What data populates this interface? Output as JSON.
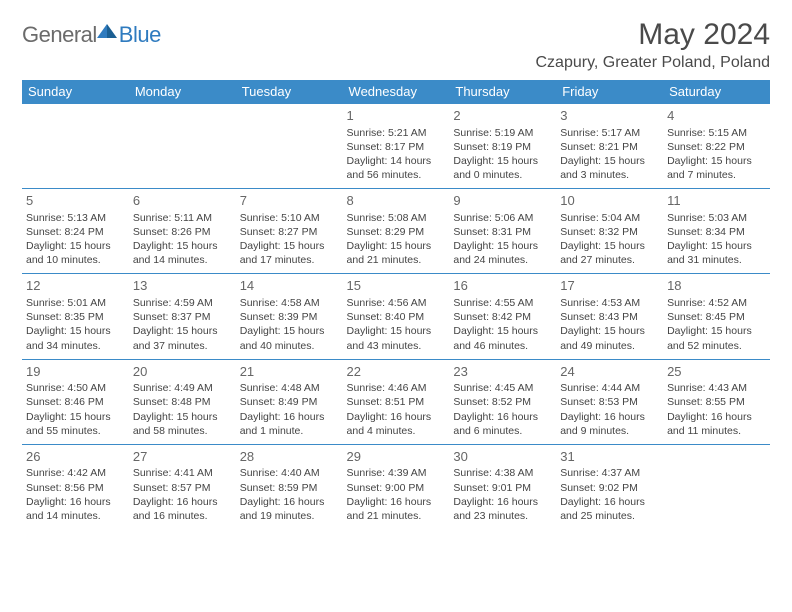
{
  "logo": {
    "general": "General",
    "blue": "Blue"
  },
  "title": "May 2024",
  "location": "Czapury, Greater Poland, Poland",
  "header_bg": "#3b8bc8",
  "days": [
    "Sunday",
    "Monday",
    "Tuesday",
    "Wednesday",
    "Thursday",
    "Friday",
    "Saturday"
  ],
  "weeks": [
    [
      null,
      null,
      null,
      {
        "n": "1",
        "sr": "5:21 AM",
        "ss": "8:17 PM",
        "dl": "14 hours and 56 minutes."
      },
      {
        "n": "2",
        "sr": "5:19 AM",
        "ss": "8:19 PM",
        "dl": "15 hours and 0 minutes."
      },
      {
        "n": "3",
        "sr": "5:17 AM",
        "ss": "8:21 PM",
        "dl": "15 hours and 3 minutes."
      },
      {
        "n": "4",
        "sr": "5:15 AM",
        "ss": "8:22 PM",
        "dl": "15 hours and 7 minutes."
      }
    ],
    [
      {
        "n": "5",
        "sr": "5:13 AM",
        "ss": "8:24 PM",
        "dl": "15 hours and 10 minutes."
      },
      {
        "n": "6",
        "sr": "5:11 AM",
        "ss": "8:26 PM",
        "dl": "15 hours and 14 minutes."
      },
      {
        "n": "7",
        "sr": "5:10 AM",
        "ss": "8:27 PM",
        "dl": "15 hours and 17 minutes."
      },
      {
        "n": "8",
        "sr": "5:08 AM",
        "ss": "8:29 PM",
        "dl": "15 hours and 21 minutes."
      },
      {
        "n": "9",
        "sr": "5:06 AM",
        "ss": "8:31 PM",
        "dl": "15 hours and 24 minutes."
      },
      {
        "n": "10",
        "sr": "5:04 AM",
        "ss": "8:32 PM",
        "dl": "15 hours and 27 minutes."
      },
      {
        "n": "11",
        "sr": "5:03 AM",
        "ss": "8:34 PM",
        "dl": "15 hours and 31 minutes."
      }
    ],
    [
      {
        "n": "12",
        "sr": "5:01 AM",
        "ss": "8:35 PM",
        "dl": "15 hours and 34 minutes."
      },
      {
        "n": "13",
        "sr": "4:59 AM",
        "ss": "8:37 PM",
        "dl": "15 hours and 37 minutes."
      },
      {
        "n": "14",
        "sr": "4:58 AM",
        "ss": "8:39 PM",
        "dl": "15 hours and 40 minutes."
      },
      {
        "n": "15",
        "sr": "4:56 AM",
        "ss": "8:40 PM",
        "dl": "15 hours and 43 minutes."
      },
      {
        "n": "16",
        "sr": "4:55 AM",
        "ss": "8:42 PM",
        "dl": "15 hours and 46 minutes."
      },
      {
        "n": "17",
        "sr": "4:53 AM",
        "ss": "8:43 PM",
        "dl": "15 hours and 49 minutes."
      },
      {
        "n": "18",
        "sr": "4:52 AM",
        "ss": "8:45 PM",
        "dl": "15 hours and 52 minutes."
      }
    ],
    [
      {
        "n": "19",
        "sr": "4:50 AM",
        "ss": "8:46 PM",
        "dl": "15 hours and 55 minutes."
      },
      {
        "n": "20",
        "sr": "4:49 AM",
        "ss": "8:48 PM",
        "dl": "15 hours and 58 minutes."
      },
      {
        "n": "21",
        "sr": "4:48 AM",
        "ss": "8:49 PM",
        "dl": "16 hours and 1 minute."
      },
      {
        "n": "22",
        "sr": "4:46 AM",
        "ss": "8:51 PM",
        "dl": "16 hours and 4 minutes."
      },
      {
        "n": "23",
        "sr": "4:45 AM",
        "ss": "8:52 PM",
        "dl": "16 hours and 6 minutes."
      },
      {
        "n": "24",
        "sr": "4:44 AM",
        "ss": "8:53 PM",
        "dl": "16 hours and 9 minutes."
      },
      {
        "n": "25",
        "sr": "4:43 AM",
        "ss": "8:55 PM",
        "dl": "16 hours and 11 minutes."
      }
    ],
    [
      {
        "n": "26",
        "sr": "4:42 AM",
        "ss": "8:56 PM",
        "dl": "16 hours and 14 minutes."
      },
      {
        "n": "27",
        "sr": "4:41 AM",
        "ss": "8:57 PM",
        "dl": "16 hours and 16 minutes."
      },
      {
        "n": "28",
        "sr": "4:40 AM",
        "ss": "8:59 PM",
        "dl": "16 hours and 19 minutes."
      },
      {
        "n": "29",
        "sr": "4:39 AM",
        "ss": "9:00 PM",
        "dl": "16 hours and 21 minutes."
      },
      {
        "n": "30",
        "sr": "4:38 AM",
        "ss": "9:01 PM",
        "dl": "16 hours and 23 minutes."
      },
      {
        "n": "31",
        "sr": "4:37 AM",
        "ss": "9:02 PM",
        "dl": "16 hours and 25 minutes."
      },
      null
    ]
  ],
  "labels": {
    "sunrise": "Sunrise:",
    "sunset": "Sunset:",
    "daylight": "Daylight:"
  }
}
